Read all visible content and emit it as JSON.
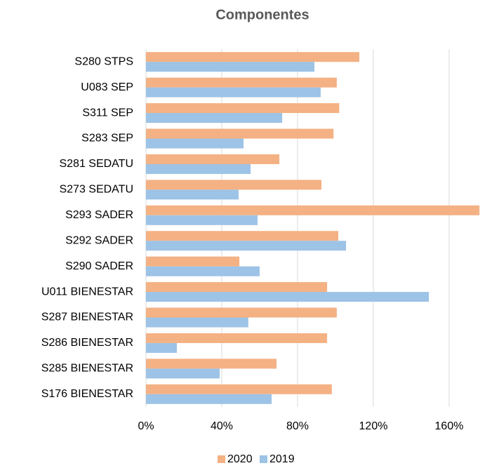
{
  "chart_data": {
    "type": "bar",
    "orientation": "horizontal",
    "title": "Componentes",
    "categories": [
      "S280 STPS",
      "U083 SEP",
      "S311 SEP",
      "S283 SEP",
      "S281 SEDATU",
      "S273 SEDATU",
      "S293 SADER",
      "S292 SADER",
      "S290 SADER",
      "U011 BIENESTAR",
      "S287 BIENESTAR",
      "S286 BIENESTAR",
      "S285 BIENESTAR",
      "S176 BIENESTAR"
    ],
    "series": [
      {
        "name": "2020",
        "color": "#f4b183",
        "values": [
          112.6,
          100.7,
          102,
          99,
          70.4,
          92.6,
          176,
          101.5,
          49.3,
          95.6,
          100.7,
          95.6,
          68.9,
          98.1
        ]
      },
      {
        "name": "2019",
        "color": "#9dc3e6",
        "values": [
          88.9,
          92.2,
          71.9,
          51.5,
          55.2,
          48.9,
          58.9,
          105.6,
          60,
          149.3,
          54,
          16.3,
          38.9,
          66.3
        ]
      }
    ],
    "xlim": [
      0,
      176
    ],
    "xticks": [
      {
        "value": 0,
        "label": "0%"
      },
      {
        "value": 40,
        "label": "40%"
      },
      {
        "value": 80,
        "label": "80%"
      },
      {
        "value": 120,
        "label": "120%"
      },
      {
        "value": 160,
        "label": "160%"
      }
    ],
    "grid": true,
    "legend": "bottom"
  }
}
